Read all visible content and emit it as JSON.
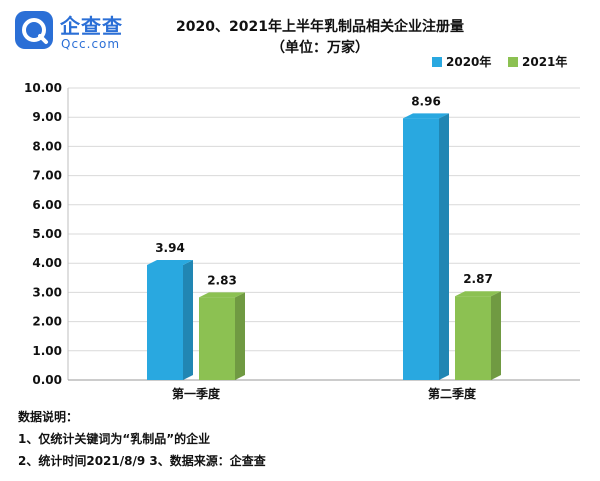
{
  "logo": {
    "cn": "企查查",
    "en": "Qcc.com"
  },
  "chart_data": {
    "type": "bar",
    "title": "2020、2021年上半年乳制品相关企业注册量",
    "subtitle": "（单位：万家）",
    "categories": [
      "第一季度",
      "第二季度"
    ],
    "series": [
      {
        "name": "2020年",
        "values": [
          3.94,
          8.96
        ],
        "color": "#29a8e0"
      },
      {
        "name": "2021年",
        "values": [
          2.83,
          2.87
        ],
        "color": "#8cc152"
      }
    ],
    "ylim": [
      0,
      10
    ],
    "yticks": [
      "0.00",
      "1.00",
      "2.00",
      "3.00",
      "4.00",
      "5.00",
      "6.00",
      "7.00",
      "8.00",
      "9.00",
      "10.00"
    ],
    "grid": true,
    "legend": "top-right",
    "value_labels": [
      [
        "3.94",
        "8.96"
      ],
      [
        "2.83",
        "2.87"
      ]
    ]
  },
  "notes": {
    "heading": "数据说明：",
    "line1": "1、仅统计关键词为“乳制品”的企业",
    "line2": "2、统计时间2021/8/9   3、数据来源：企查查"
  }
}
